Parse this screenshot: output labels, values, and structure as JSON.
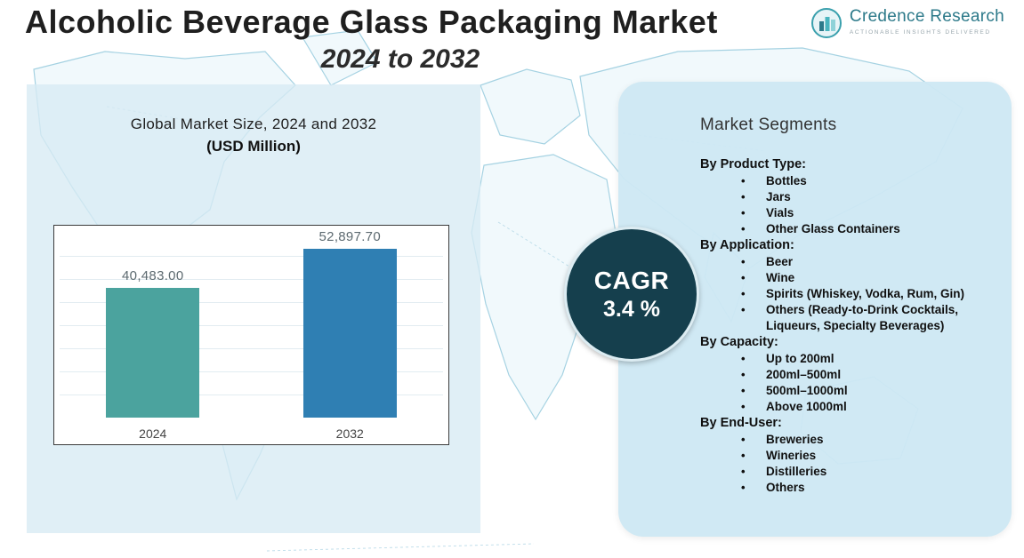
{
  "header": {
    "title": "Alcoholic Beverage Glass Packaging Market",
    "subtitle": "2024 to 2032"
  },
  "logo": {
    "name": "Credence Research",
    "tagline": "Actionable Insights Delivered"
  },
  "chart_data": {
    "type": "bar",
    "title": "Global Market Size, 2024 and 2032",
    "subtitle": "(USD Million)",
    "categories": [
      "2024",
      "2032"
    ],
    "values": [
      40483.0,
      52897.7
    ],
    "value_labels": [
      "40,483.00",
      "52,897.70"
    ],
    "bar_colors": [
      "#4ba39e",
      "#2f7fb3"
    ],
    "ylim": [
      0,
      60000
    ],
    "grid": true,
    "ylabel": "",
    "xlabel": ""
  },
  "cagr": {
    "label": "CAGR",
    "value": "3.4 %"
  },
  "segments": {
    "title": "Market Segments",
    "groups": [
      {
        "heading": "By Product Type:",
        "items": [
          "Bottles",
          "Jars",
          "Vials",
          "Other Glass Containers"
        ]
      },
      {
        "heading": "By Application:",
        "items": [
          "Beer",
          "Wine",
          "Spirits (Whiskey, Vodka, Rum, Gin)",
          "Others (Ready-to-Drink Cocktails, Liqueurs, Specialty Beverages)"
        ]
      },
      {
        "heading": "By Capacity:",
        "items": [
          "Up to 200ml",
          "200ml–500ml",
          "500ml–1000ml",
          "Above 1000ml"
        ]
      },
      {
        "heading": "By End-User:",
        "items": [
          "Breweries",
          "Wineries",
          "Distilleries",
          "Others"
        ]
      }
    ]
  }
}
